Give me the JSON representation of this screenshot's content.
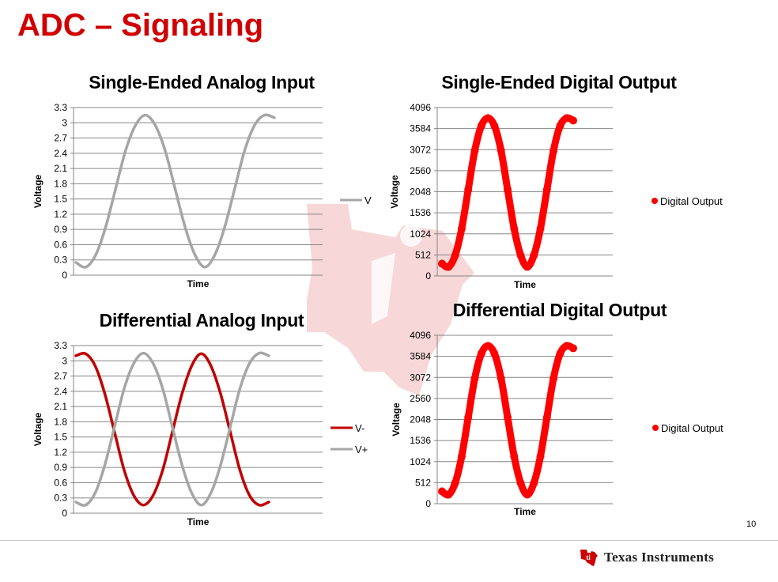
{
  "slide": {
    "title": "ADC – Signaling",
    "page_number": "10",
    "logo_text": "Texas Instruments",
    "brand_color": "#d00000"
  },
  "chart_data": [
    {
      "id": "se_analog",
      "type": "line",
      "title": "Single-Ended Analog Input",
      "xlabel": "Time",
      "ylabel": "Voltage",
      "ylim": [
        0,
        3.3
      ],
      "yticks": [
        "0",
        "0.3",
        "0.6",
        "0.9",
        "1.2",
        "1.5",
        "1.8",
        "2.1",
        "2.4",
        "2.7",
        "3",
        "3.3"
      ],
      "grid": true,
      "legend_position": "right",
      "x_fraction": [
        0,
        0.05,
        0.1,
        0.15,
        0.2,
        0.25,
        0.3,
        0.35,
        0.4,
        0.45,
        0.5,
        0.55,
        0.6,
        0.65,
        0.7,
        0.75,
        0.8,
        0.85,
        0.9,
        0.95,
        1.0
      ],
      "series": [
        {
          "name": "V",
          "color": "#a6a6a6",
          "style": "line",
          "values": [
            0.25,
            0.16,
            0.4,
            0.95,
            1.7,
            2.45,
            2.95,
            3.15,
            2.95,
            2.45,
            1.7,
            0.95,
            0.4,
            0.16,
            0.4,
            0.95,
            1.7,
            2.45,
            2.95,
            3.15,
            3.1
          ]
        }
      ]
    },
    {
      "id": "se_digital",
      "type": "scatter",
      "title": "Single-Ended Digital Output",
      "xlabel": "Time",
      "ylabel": "Voltage",
      "ylim": [
        0,
        4096
      ],
      "yticks": [
        "0",
        "512",
        "1024",
        "1536",
        "2048",
        "2560",
        "3072",
        "3584",
        "4096"
      ],
      "grid": true,
      "legend_position": "right",
      "x_fraction": [
        0,
        0.05,
        0.1,
        0.15,
        0.2,
        0.25,
        0.3,
        0.35,
        0.4,
        0.45,
        0.5,
        0.55,
        0.6,
        0.65,
        0.7,
        0.75,
        0.8,
        0.85,
        0.9,
        0.95,
        1.0
      ],
      "series": [
        {
          "name": "Digital Output",
          "color": "#ff0000",
          "style": "markers",
          "values": [
            300,
            220,
            500,
            1150,
            2100,
            3050,
            3650,
            3840,
            3650,
            3050,
            2100,
            1150,
            500,
            220,
            500,
            1150,
            2100,
            3050,
            3650,
            3840,
            3780
          ]
        }
      ]
    },
    {
      "id": "diff_analog",
      "type": "line",
      "title": "Differential Analog Input",
      "xlabel": "Time",
      "ylabel": "Voltage",
      "ylim": [
        0,
        3.3
      ],
      "yticks": [
        "0",
        "0.3",
        "0.6",
        "0.9",
        "1.2",
        "1.5",
        "1.8",
        "2.1",
        "2.4",
        "2.7",
        "3",
        "3.3"
      ],
      "grid": true,
      "legend_position": "right",
      "x_fraction": [
        0,
        0.05,
        0.1,
        0.15,
        0.2,
        0.25,
        0.3,
        0.35,
        0.4,
        0.45,
        0.5,
        0.55,
        0.6,
        0.65,
        0.7,
        0.75,
        0.8,
        0.85,
        0.9,
        0.95,
        1.0
      ],
      "series": [
        {
          "name": "V-",
          "color": "#c00000",
          "style": "line",
          "values": [
            3.1,
            3.14,
            2.9,
            2.35,
            1.6,
            0.85,
            0.35,
            0.16,
            0.35,
            0.85,
            1.6,
            2.35,
            2.9,
            3.14,
            2.9,
            2.35,
            1.6,
            0.85,
            0.35,
            0.16,
            0.22
          ]
        },
        {
          "name": "V+",
          "color": "#a6a6a6",
          "style": "line",
          "values": [
            0.22,
            0.16,
            0.4,
            0.95,
            1.7,
            2.45,
            2.95,
            3.15,
            2.95,
            2.45,
            1.7,
            0.95,
            0.4,
            0.16,
            0.4,
            0.95,
            1.7,
            2.45,
            2.95,
            3.15,
            3.1
          ]
        }
      ]
    },
    {
      "id": "diff_digital",
      "type": "scatter",
      "title": "Differential Digital Output",
      "xlabel": "Time",
      "ylabel": "Voltage",
      "ylim": [
        0,
        4096
      ],
      "yticks": [
        "0",
        "512",
        "1024",
        "1536",
        "2048",
        "2560",
        "3072",
        "3584",
        "4096"
      ],
      "grid": true,
      "legend_position": "right",
      "x_fraction": [
        0,
        0.05,
        0.1,
        0.15,
        0.2,
        0.25,
        0.3,
        0.35,
        0.4,
        0.45,
        0.5,
        0.55,
        0.6,
        0.65,
        0.7,
        0.75,
        0.8,
        0.85,
        0.9,
        0.95,
        1.0
      ],
      "series": [
        {
          "name": "Digital Output",
          "color": "#ff0000",
          "style": "markers",
          "values": [
            300,
            220,
            500,
            1150,
            2100,
            3050,
            3650,
            3840,
            3650,
            3050,
            2100,
            1150,
            500,
            220,
            500,
            1150,
            2100,
            3050,
            3650,
            3840,
            3780
          ]
        }
      ]
    }
  ]
}
